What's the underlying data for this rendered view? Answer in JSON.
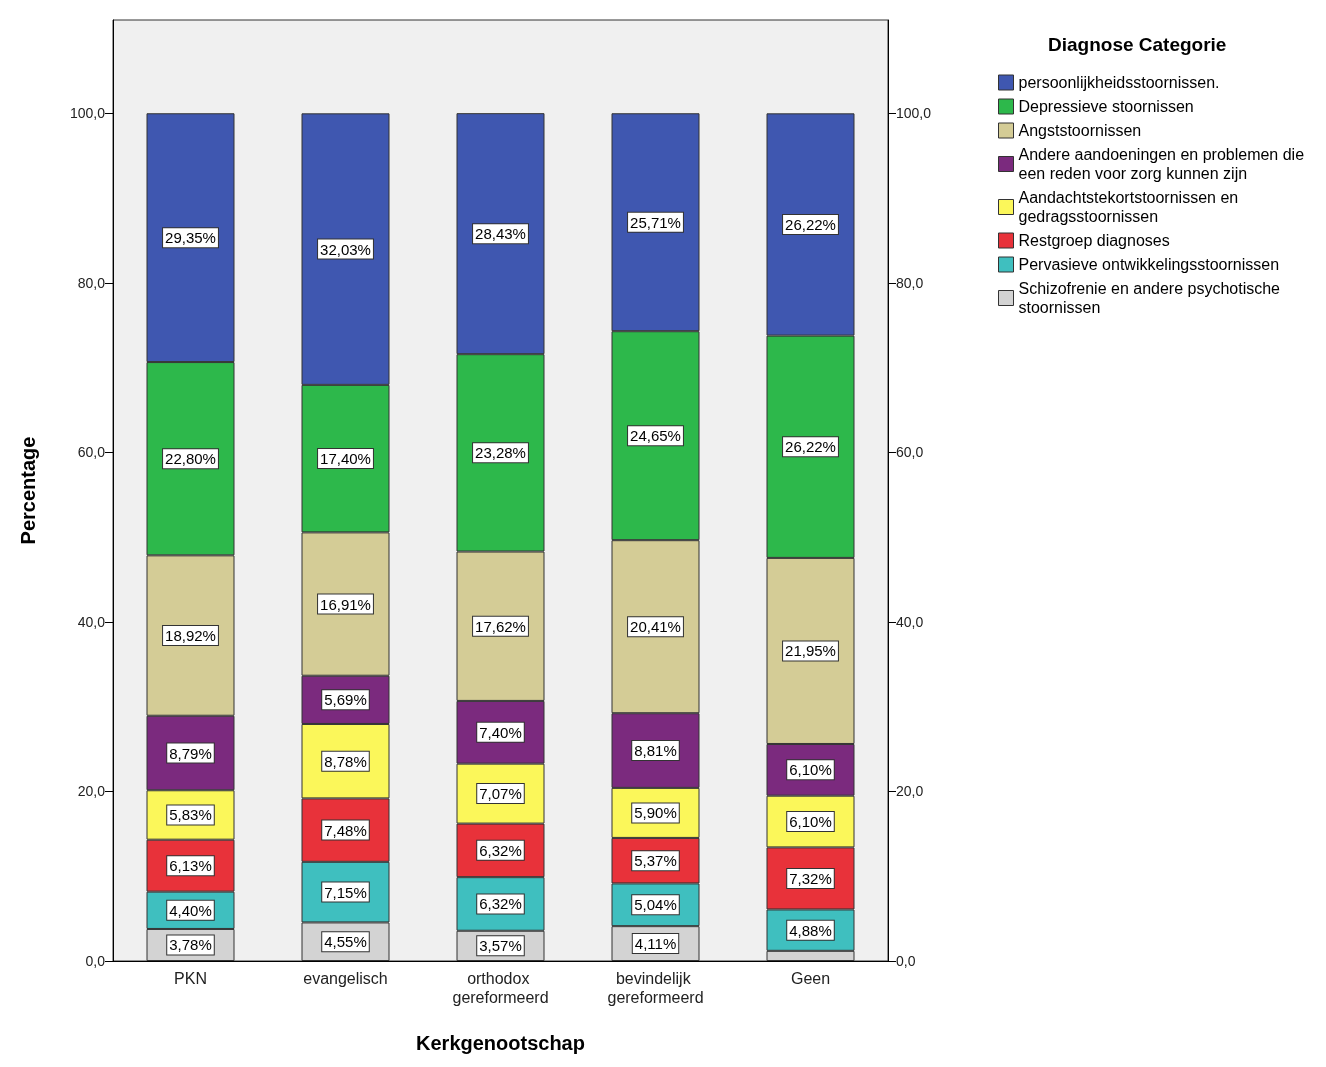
{
  "chart_data": {
    "type": "bar",
    "stacked": true,
    "xlabel": "Kerkgenootschap",
    "ylabel": "Percentage",
    "legend_title": "Diagnose Categorie",
    "legend": "top right",
    "categories": [
      "PKN",
      "evangelisch",
      "orthodox gereformeerd",
      "bevindelijk gereformeerd",
      "Geen"
    ],
    "ylim": [
      0,
      111
    ],
    "yticks": [
      {
        "value": 0,
        "label": "0,0"
      },
      {
        "value": 20,
        "label": "20,0"
      },
      {
        "value": 40,
        "label": "40,0"
      },
      {
        "value": 60,
        "label": "60,0"
      },
      {
        "value": 80,
        "label": "80,0"
      },
      {
        "value": 100,
        "label": "100,0"
      }
    ],
    "y2lim": [
      0,
      111
    ],
    "y2ticks": [
      {
        "value": 0,
        "label": "0,0"
      },
      {
        "value": 20,
        "label": "20,0"
      },
      {
        "value": 40,
        "label": "40,0"
      },
      {
        "value": 60,
        "label": "60,0"
      },
      {
        "value": 80,
        "label": "80,0"
      },
      {
        "value": 100,
        "label": "100,0"
      }
    ],
    "series": [
      {
        "name": "Schizofrenie en andere psychotische stoornissen",
        "color": "#d3d3d3",
        "values": [
          3.78,
          4.55,
          3.57,
          4.11,
          1.2
        ],
        "value_labels": [
          "3,78%",
          "4,55%",
          "3,57%",
          "4,11%",
          null
        ]
      },
      {
        "name": "Pervasieve ontwikkelingsstoornissen",
        "color": "#3fbfbf",
        "values": [
          4.4,
          7.15,
          6.32,
          5.04,
          4.88
        ],
        "value_labels": [
          "4,40%",
          "7,15%",
          "6,32%",
          "5,04%",
          "4,88%"
        ]
      },
      {
        "name": "Restgroep diagnoses",
        "color": "#e8323a",
        "values": [
          6.13,
          7.48,
          6.32,
          5.37,
          7.32
        ],
        "value_labels": [
          "6,13%",
          "7,48%",
          "6,32%",
          "5,37%",
          "7,32%"
        ]
      },
      {
        "name": "Aandachtstekortstoornissen en gedragsstoornissen",
        "color": "#fbf75a",
        "values": [
          5.83,
          8.78,
          7.07,
          5.9,
          6.1
        ],
        "value_labels": [
          "5,83%",
          "8,78%",
          "7,07%",
          "5,90%",
          "6,10%"
        ]
      },
      {
        "name": "Andere aandoeningen en problemen die een reden voor zorg kunnen zijn",
        "color": "#7b2a7e",
        "values": [
          8.79,
          5.69,
          7.4,
          8.81,
          6.1
        ],
        "value_labels": [
          "8,79%",
          "5,69%",
          "7,40%",
          "8,81%",
          "6,10%"
        ]
      },
      {
        "name": "Angststoornissen",
        "color": "#d4cc96",
        "values": [
          18.92,
          16.91,
          17.62,
          20.41,
          21.95
        ],
        "value_labels": [
          "18,92%",
          "16,91%",
          "17,62%",
          "20,41%",
          "21,95%"
        ]
      },
      {
        "name": "Depressieve stoornissen",
        "color": "#2db84b",
        "values": [
          22.8,
          17.4,
          23.28,
          24.65,
          26.22
        ],
        "value_labels": [
          "22,80%",
          "17,40%",
          "23,28%",
          "24,65%",
          "26,22%"
        ]
      },
      {
        "name": "persoonlijkheidsstoornissen.",
        "color": "#3f57b0",
        "values": [
          29.35,
          32.03,
          28.43,
          25.71,
          26.22
        ],
        "value_labels": [
          "29,35%",
          "32,03%",
          "28,43%",
          "25,71%",
          "26,22%"
        ]
      }
    ]
  }
}
